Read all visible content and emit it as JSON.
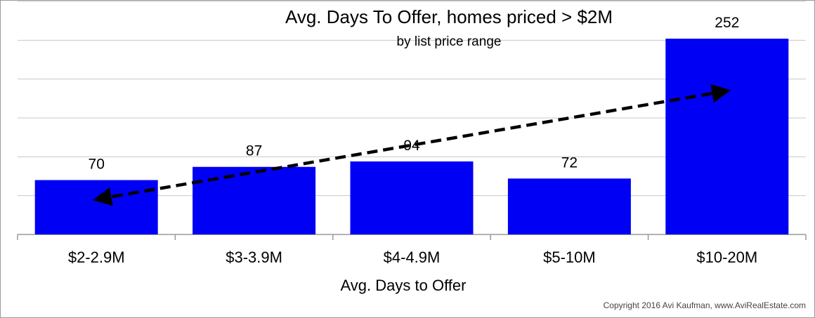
{
  "chart_data": {
    "type": "bar",
    "title": "Avg. Days To Offer, homes priced > $2M",
    "subtitle": "by list price range",
    "xlabel": "Avg. Days to Offer",
    "ylabel": "",
    "categories": [
      "$2-2.9M",
      "$3-3.9M",
      "$4-4.9M",
      "$5-10M",
      "$10-20M"
    ],
    "values": [
      70,
      87,
      94,
      72,
      252
    ],
    "ylim": [
      0,
      300
    ],
    "grid": true,
    "legend": "none",
    "bar_color": "#0000f5",
    "trendline": {
      "style": "dashed",
      "arrows": "both",
      "color": "#000000"
    },
    "footer": "Copyright 2016 Avi Kaufman, www.AviRealEstate.com"
  }
}
